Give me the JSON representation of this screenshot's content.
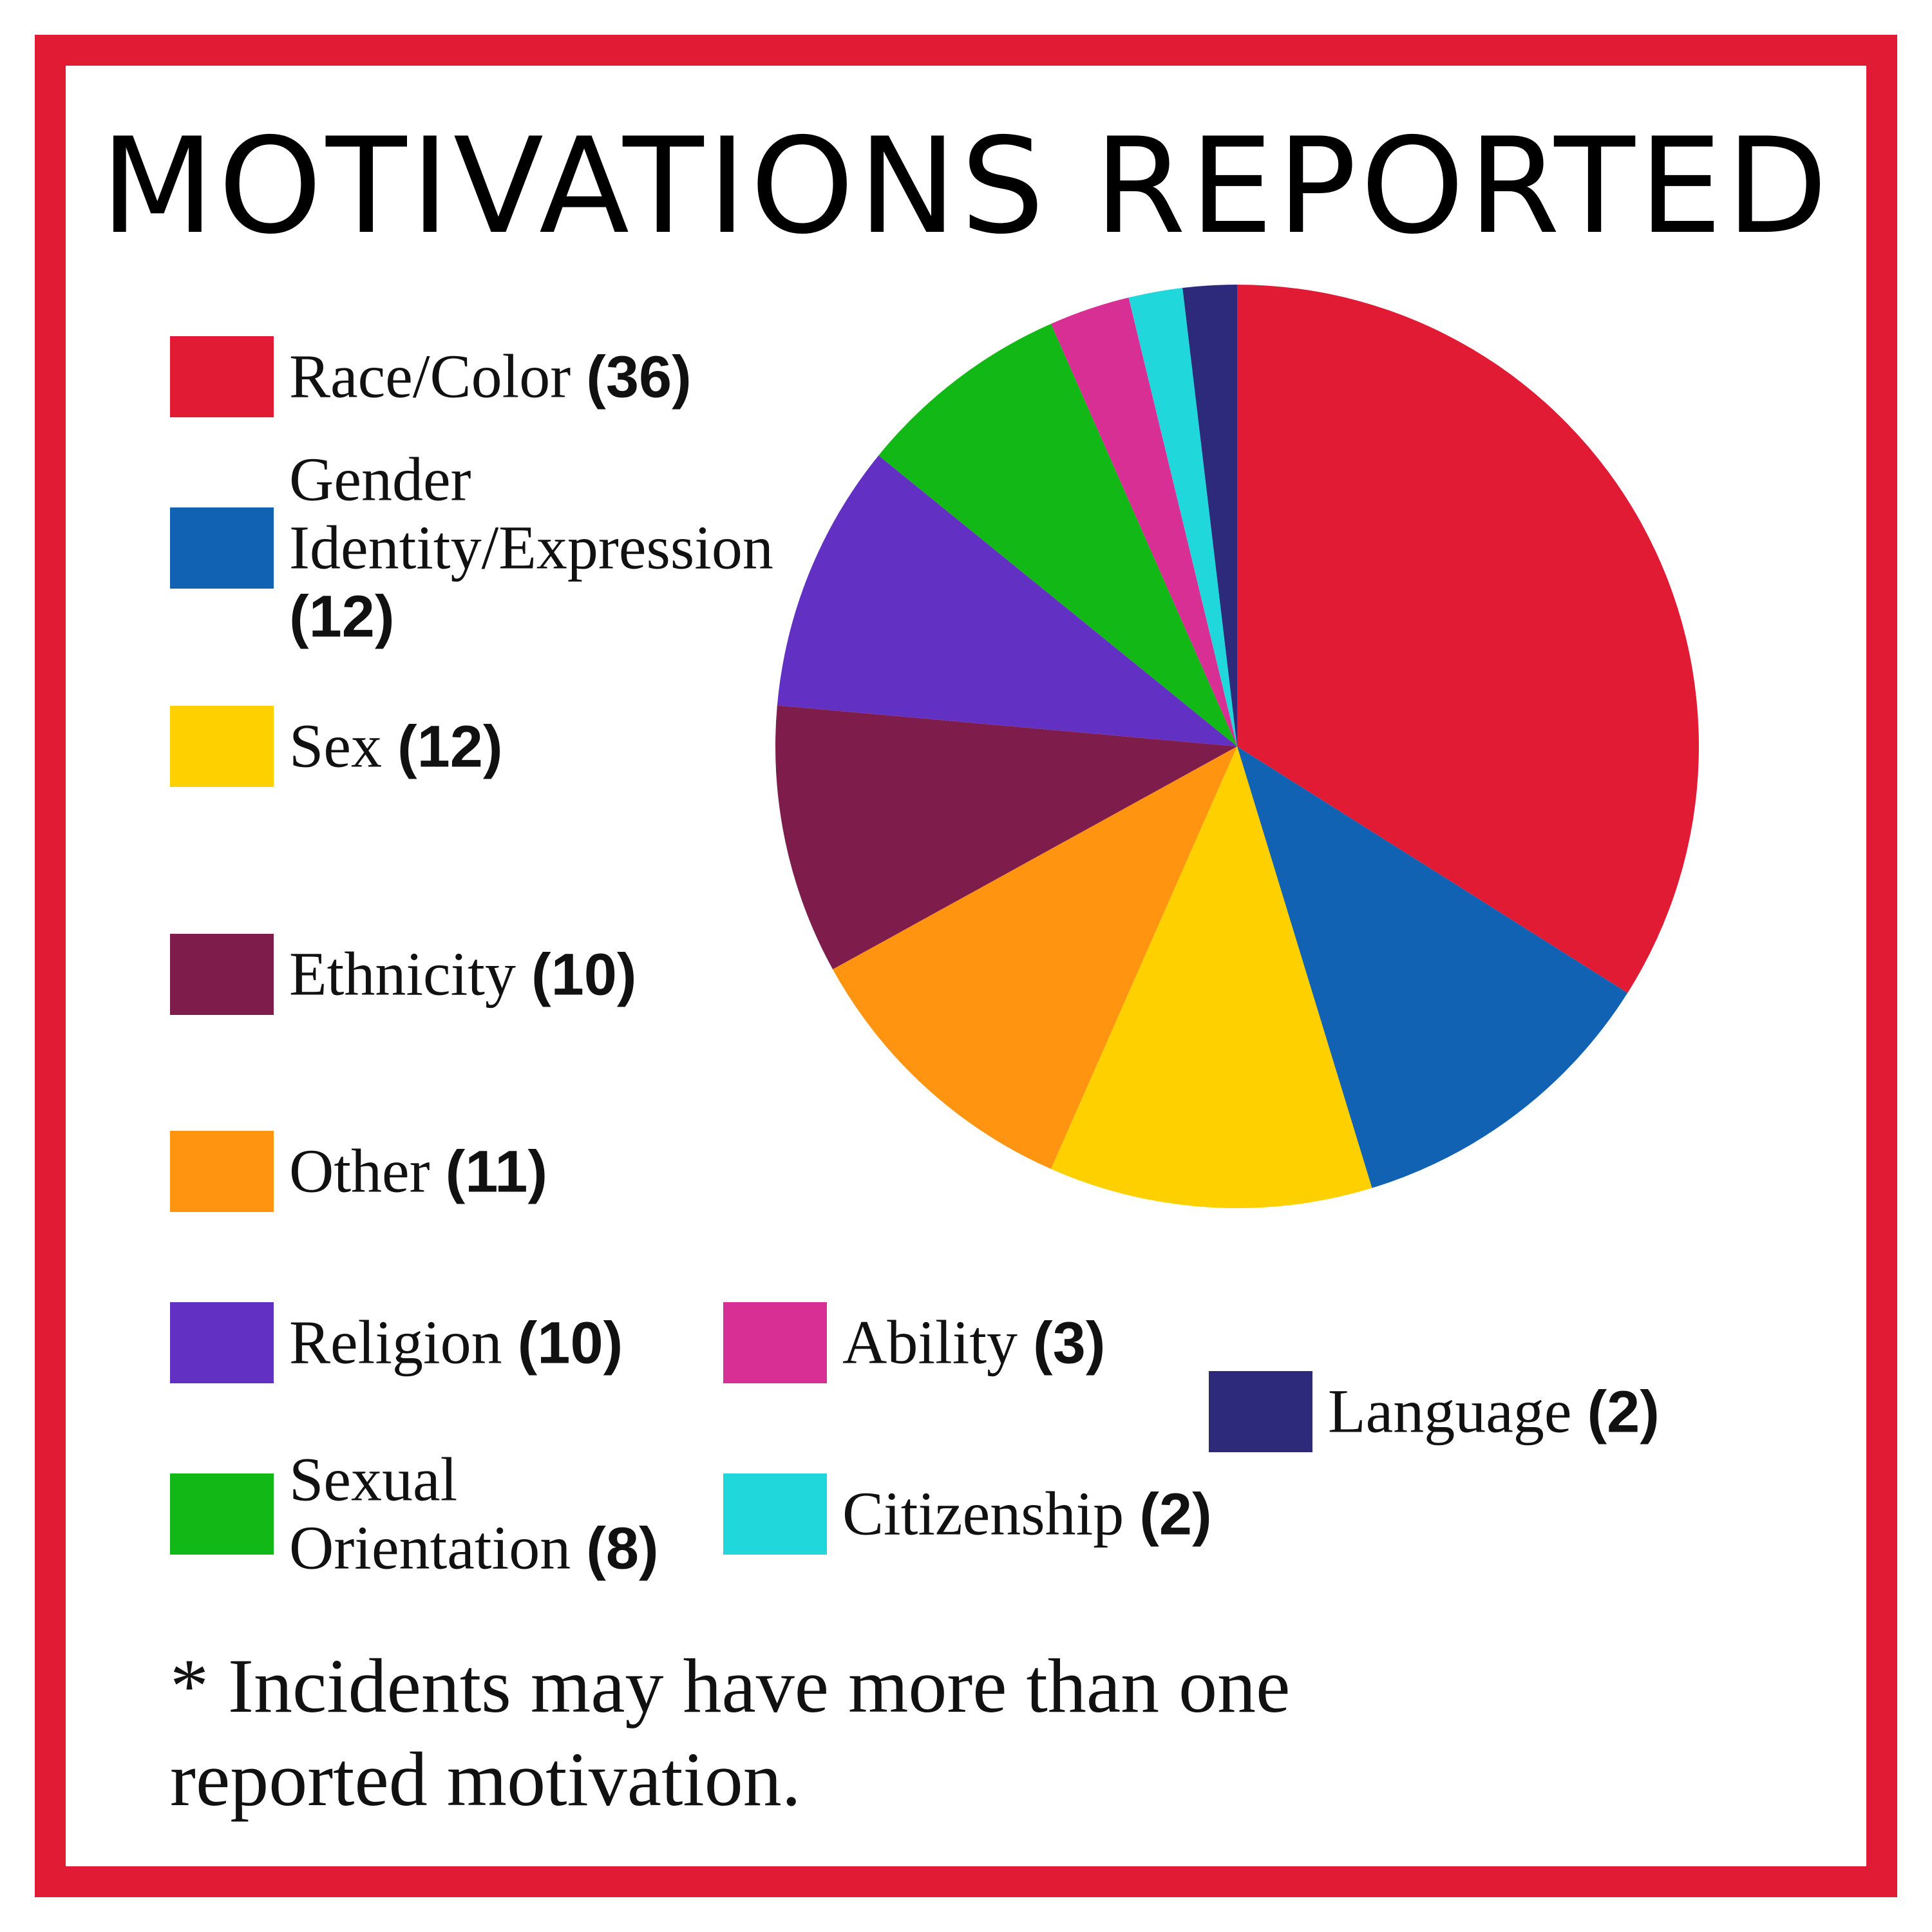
{
  "chart_data": {
    "type": "pie",
    "title": "MOTIVATIONS REPORTED",
    "categories": [
      "Race/Color",
      "Gender Identity/Expression",
      "Sex",
      "Other",
      "Ethnicity",
      "Religion",
      "Sexual Orientation",
      "Ability",
      "Citizenship",
      "Language"
    ],
    "values": [
      36,
      12,
      12,
      11,
      10,
      10,
      8,
      3,
      2,
      2
    ],
    "value_labels": [
      "(36)",
      "(12)",
      "(12)",
      "(11)",
      "(10)",
      "(10)",
      "(8)",
      "(3)",
      "(2)",
      "(2)"
    ],
    "colors": [
      "#e21b35",
      "#1262b3",
      "#ffd000",
      "#ff9410",
      "#7e1d4b",
      "#6230c2",
      "#12b916",
      "#d72f94",
      "#20d7db",
      "#2d2a7c"
    ],
    "note": "* Incidents may have more than one reported motivation."
  }
}
